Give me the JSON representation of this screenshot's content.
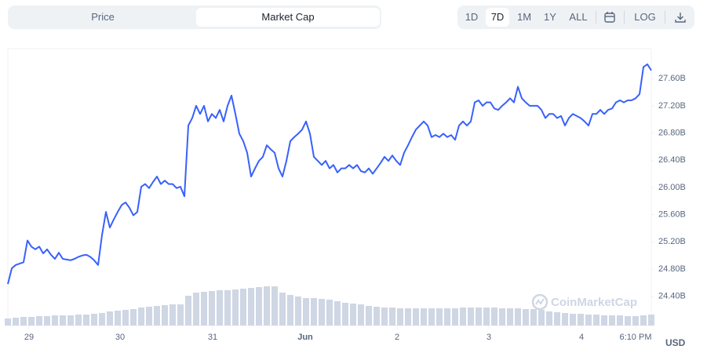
{
  "controls": {
    "tabs": [
      "Price",
      "Market Cap"
    ],
    "ranges": [
      "1D",
      "7D",
      "1M",
      "1Y",
      "ALL"
    ],
    "log": "LOG"
  },
  "chart_data": {
    "type": "line",
    "currency": "USD",
    "watermark": "CoinMarketCap",
    "series": [
      {
        "color": "#3861fb",
        "values": [
          24.58,
          24.81,
          24.86,
          24.88,
          24.9,
          25.22,
          25.13,
          25.09,
          25.13,
          25.03,
          25.09,
          25.01,
          24.95,
          25.04,
          24.95,
          24.94,
          24.93,
          24.95,
          24.98,
          25.0,
          25.01,
          24.98,
          24.93,
          24.86,
          25.3,
          25.64,
          25.41,
          25.53,
          25.64,
          25.74,
          25.78,
          25.7,
          25.59,
          25.64,
          26.01,
          26.05,
          25.99,
          26.08,
          26.16,
          26.05,
          26.1,
          26.05,
          26.05,
          25.99,
          26.01,
          25.87,
          26.91,
          27.02,
          27.2,
          27.08,
          27.2,
          26.97,
          27.08,
          27.02,
          27.14,
          26.97,
          27.2,
          27.35,
          27.08,
          26.79,
          26.68,
          26.51,
          26.16,
          26.28,
          26.39,
          26.45,
          26.62,
          26.56,
          26.51,
          26.28,
          26.16,
          26.39,
          26.68,
          26.74,
          26.79,
          26.85,
          26.97,
          26.79,
          26.45,
          26.39,
          26.33,
          26.39,
          26.28,
          26.33,
          26.22,
          26.28,
          26.28,
          26.33,
          26.28,
          26.33,
          26.24,
          26.22,
          26.28,
          26.2,
          26.28,
          26.36,
          26.45,
          26.39,
          26.47,
          26.39,
          26.33,
          26.51,
          26.62,
          26.74,
          26.85,
          26.91,
          26.97,
          26.91,
          26.74,
          26.77,
          26.74,
          26.79,
          26.74,
          26.77,
          26.7,
          26.91,
          26.97,
          26.91,
          26.97,
          27.25,
          27.28,
          27.2,
          27.25,
          27.25,
          27.16,
          27.14,
          27.2,
          27.25,
          27.31,
          27.25,
          27.48,
          27.31,
          27.25,
          27.2,
          27.2,
          27.2,
          27.14,
          27.02,
          27.08,
          27.08,
          27.02,
          27.05,
          26.91,
          27.02,
          27.08,
          27.05,
          27.02,
          26.97,
          26.91,
          27.08,
          27.08,
          27.14,
          27.08,
          27.14,
          27.16,
          27.25,
          27.28,
          27.25,
          27.28,
          27.28,
          27.31,
          27.37,
          27.77,
          27.81,
          27.72
        ]
      }
    ],
    "volume": {
      "color": "#cfd6e4",
      "ylim": [
        0,
        353
      ],
      "values": [
        9,
        10,
        11,
        11,
        12,
        12,
        13,
        13,
        13,
        14,
        14,
        15,
        16,
        18,
        19,
        20,
        21,
        23,
        24,
        25,
        26,
        27,
        27,
        38,
        42,
        43,
        44,
        45,
        45,
        46,
        47,
        48,
        49,
        50,
        50,
        42,
        39,
        37,
        35,
        35,
        34,
        33,
        31,
        29,
        28,
        27,
        25,
        24,
        23,
        23,
        22,
        22,
        22,
        22,
        22,
        22,
        22,
        22,
        23,
        23,
        23,
        23,
        23,
        22,
        22,
        22,
        21,
        21,
        20,
        18,
        17,
        16,
        15,
        15,
        14,
        14,
        13,
        13,
        13,
        12,
        12,
        13,
        14
      ]
    },
    "xlim": [
      0,
      164
    ],
    "xticks": [
      {
        "value": 5.4,
        "label": "29"
      },
      {
        "value": 28.6,
        "label": "30"
      },
      {
        "value": 52.2,
        "label": "31"
      },
      {
        "value": 75.8,
        "label": "Jun"
      },
      {
        "value": 99.2,
        "label": "2"
      },
      {
        "value": 122.6,
        "label": "3"
      },
      {
        "value": 146.2,
        "label": "4"
      },
      {
        "value": 160,
        "label": "6:10 PM"
      }
    ],
    "ylim": [
      23.97,
      28.04
    ],
    "yticks": [
      {
        "value": 24.4,
        "label": "24.40B"
      },
      {
        "value": 24.8,
        "label": "24.80B"
      },
      {
        "value": 25.2,
        "label": "25.20B"
      },
      {
        "value": 25.6,
        "label": "25.60B"
      },
      {
        "value": 26.0,
        "label": "26.00B"
      },
      {
        "value": 26.4,
        "label": "26.40B"
      },
      {
        "value": 26.8,
        "label": "26.80B"
      },
      {
        "value": 27.2,
        "label": "27.20B"
      },
      {
        "value": 27.6,
        "label": "27.60B"
      }
    ],
    "grid": false
  }
}
